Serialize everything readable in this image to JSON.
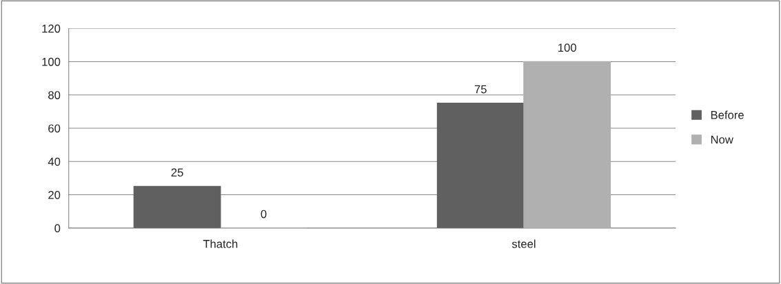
{
  "chart_data": {
    "type": "bar",
    "categories": [
      "Thatch",
      "steel"
    ],
    "series": [
      {
        "name": "Before",
        "color": "#606060",
        "values": [
          25,
          75
        ]
      },
      {
        "name": "Now",
        "color": "#b0b0b0",
        "values": [
          0,
          100
        ]
      }
    ],
    "ylim": [
      0,
      120
    ],
    "yticks": [
      0,
      20,
      40,
      60,
      80,
      100,
      120
    ],
    "grid": "y",
    "legend": "right",
    "data_labels": true
  }
}
